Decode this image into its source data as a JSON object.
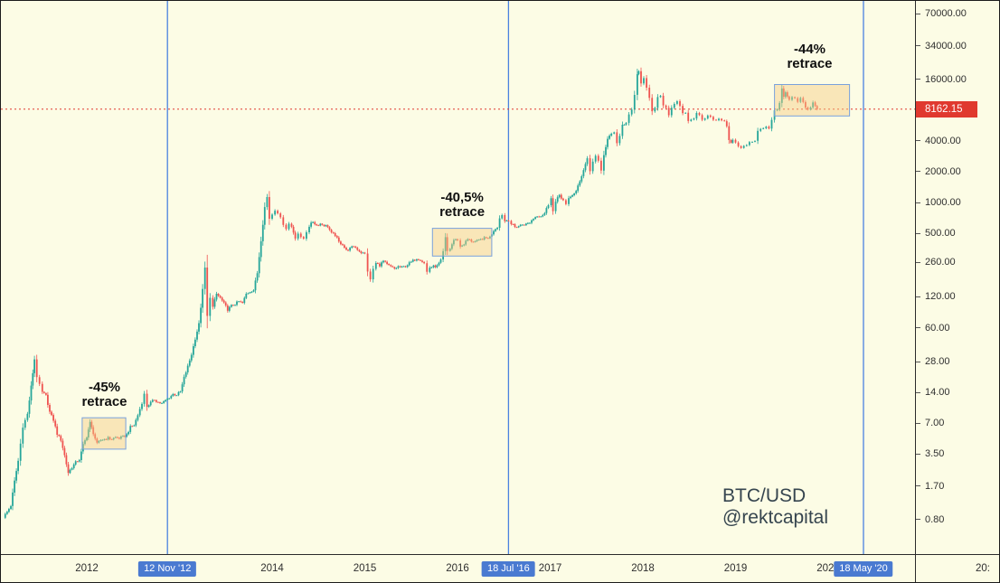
{
  "colors": {
    "background": "#FCFCE5",
    "candle_up": "#26a69a",
    "candle_down": "#ef5350",
    "halving_line": "#4b82e0",
    "tag_bg": "#4a7ad1",
    "price_line": "#e0392f",
    "price_tag_bg": "#e0392f",
    "box_fill": "rgba(246,204,128,0.45)",
    "box_border": "#79a1dc",
    "annotation_text": "#101010",
    "axis_text": "#2f2f2f",
    "watermark_text": "#36454f"
  },
  "chart_data": {
    "type": "candlestick",
    "symbol": "BTC/USD",
    "scale": "log",
    "title": "",
    "watermark": {
      "line1": "BTC/USD",
      "line2": "@rektcapital"
    },
    "last_price": {
      "value": 8162.15,
      "label": "8162.15"
    },
    "y_axis": {
      "scale": "log",
      "ticks": [
        {
          "value": 70000,
          "label": "70000.00"
        },
        {
          "value": 34000,
          "label": "34000.00"
        },
        {
          "value": 16000,
          "label": "16000.00"
        },
        {
          "value": 4000,
          "label": "4000.00"
        },
        {
          "value": 2000,
          "label": "2000.00"
        },
        {
          "value": 1000,
          "label": "1000.00"
        },
        {
          "value": 500,
          "label": "500.00"
        },
        {
          "value": 260,
          "label": "260.00"
        },
        {
          "value": 120,
          "label": "120.00"
        },
        {
          "value": 60,
          "label": "60.00"
        },
        {
          "value": 28,
          "label": "28.00"
        },
        {
          "value": 14,
          "label": "14.00"
        },
        {
          "value": 7,
          "label": "7.00"
        },
        {
          "value": 3.5,
          "label": "3.50"
        },
        {
          "value": 1.7,
          "label": "1.70"
        },
        {
          "value": 0.8,
          "label": "0.80"
        }
      ]
    },
    "time_axis": {
      "years": [
        {
          "t": 2012,
          "label": "2012"
        },
        {
          "t": 2013,
          "label": "2013"
        },
        {
          "t": 2014,
          "label": "2014"
        },
        {
          "t": 2015,
          "label": "2015"
        },
        {
          "t": 2016,
          "label": "2016"
        },
        {
          "t": 2017,
          "label": "2017"
        },
        {
          "t": 2018,
          "label": "2018"
        },
        {
          "t": 2019,
          "label": "2019"
        },
        {
          "t": 2020,
          "label": "2020"
        }
      ],
      "clock": "20:"
    },
    "halvings": [
      {
        "t": 2012.87,
        "label": "12 Nov '12"
      },
      {
        "t": 2016.55,
        "label": "18 Jul '16"
      },
      {
        "t": 2020.38,
        "label": "18 May '20"
      }
    ],
    "retrace_boxes": [
      {
        "t0": 2011.95,
        "t1": 2012.42,
        "p_low": 3.9,
        "p_high": 7.9,
        "annotation": {
          "lines": [
            "-45%",
            "retrace"
          ],
          "t": 2012.19,
          "p": 14.3
        }
      },
      {
        "t0": 2015.73,
        "t1": 2016.37,
        "p_low": 300,
        "p_high": 560,
        "annotation": {
          "lines": [
            "-40,5%",
            "retrace"
          ],
          "t": 2016.05,
          "p": 1020
        }
      },
      {
        "t0": 2019.42,
        "t1": 2020.23,
        "p_low": 7000,
        "p_high": 14200,
        "annotation": {
          "lines": [
            "-44%",
            "retrace"
          ],
          "t": 2019.8,
          "p": 28600
        }
      }
    ],
    "series": [
      [
        2011.1,
        0.85
      ],
      [
        2011.14,
        0.95
      ],
      [
        2011.18,
        1.1
      ],
      [
        2011.22,
        1.9
      ],
      [
        2011.26,
        3.0
      ],
      [
        2011.31,
        6.5
      ],
      [
        2011.36,
        8.6
      ],
      [
        2011.4,
        16.0
      ],
      [
        2011.435,
        29.5
      ],
      [
        2011.46,
        20.0
      ],
      [
        2011.49,
        16.5
      ],
      [
        2011.52,
        14.0
      ],
      [
        2011.56,
        13.0
      ],
      [
        2011.6,
        9.0
      ],
      [
        2011.64,
        7.5
      ],
      [
        2011.68,
        5.5
      ],
      [
        2011.72,
        4.8
      ],
      [
        2011.76,
        3.4
      ],
      [
        2011.8,
        2.3
      ],
      [
        2011.84,
        2.6
      ],
      [
        2011.88,
        2.9
      ],
      [
        2011.92,
        3.1
      ],
      [
        2011.96,
        4.3
      ],
      [
        2012.0,
        5.2
      ],
      [
        2012.035,
        7.1
      ],
      [
        2012.07,
        5.6
      ],
      [
        2012.11,
        4.4
      ],
      [
        2012.15,
        4.8
      ],
      [
        2012.19,
        4.9
      ],
      [
        2012.23,
        5.0
      ],
      [
        2012.27,
        4.9
      ],
      [
        2012.31,
        5.1
      ],
      [
        2012.35,
        5.0
      ],
      [
        2012.39,
        5.15
      ],
      [
        2012.43,
        5.4
      ],
      [
        2012.47,
        6.4
      ],
      [
        2012.51,
        6.7
      ],
      [
        2012.55,
        8.4
      ],
      [
        2012.595,
        11.1
      ],
      [
        2012.62,
        13.4
      ],
      [
        2012.65,
        10.2
      ],
      [
        2012.69,
        11.1
      ],
      [
        2012.73,
        11.9
      ],
      [
        2012.77,
        11.2
      ],
      [
        2012.81,
        10.9
      ],
      [
        2012.85,
        11.7
      ],
      [
        2012.89,
        12.5
      ],
      [
        2012.93,
        13.4
      ],
      [
        2012.97,
        13.3
      ],
      [
        2013.01,
        14.2
      ],
      [
        2013.05,
        19.5
      ],
      [
        2013.09,
        25.0
      ],
      [
        2013.13,
        33.0
      ],
      [
        2013.17,
        47.0
      ],
      [
        2013.21,
        65.0
      ],
      [
        2013.25,
        140.0
      ],
      [
        2013.275,
        230.0
      ],
      [
        2013.3,
        77.0
      ],
      [
        2013.33,
        120.0
      ],
      [
        2013.36,
        95.0
      ],
      [
        2013.4,
        128.0
      ],
      [
        2013.44,
        117.0
      ],
      [
        2013.48,
        103.0
      ],
      [
        2013.52,
        90.0
      ],
      [
        2013.56,
        98.0
      ],
      [
        2013.6,
        102.0
      ],
      [
        2013.64,
        108.0
      ],
      [
        2013.68,
        104.0
      ],
      [
        2013.72,
        128.0
      ],
      [
        2013.76,
        135.0
      ],
      [
        2013.8,
        140.0
      ],
      [
        2013.84,
        205.0
      ],
      [
        2013.88,
        430.0
      ],
      [
        2013.92,
        900.0
      ],
      [
        2013.945,
        1130.0
      ],
      [
        2013.97,
        700.0
      ],
      [
        2014.0,
        770.0
      ],
      [
        2014.03,
        850.0
      ],
      [
        2014.06,
        800.0
      ],
      [
        2014.09,
        700.0
      ],
      [
        2014.12,
        620.0
      ],
      [
        2014.15,
        560.0
      ],
      [
        2014.18,
        620.0
      ],
      [
        2014.21,
        580.0
      ],
      [
        2014.25,
        455.0
      ],
      [
        2014.28,
        500.0
      ],
      [
        2014.31,
        450.0
      ],
      [
        2014.34,
        445.0
      ],
      [
        2014.37,
        520.0
      ],
      [
        2014.4,
        590.0
      ],
      [
        2014.44,
        650.0
      ],
      [
        2014.48,
        600.0
      ],
      [
        2014.52,
        620.0
      ],
      [
        2014.56,
        600.0
      ],
      [
        2014.6,
        585.0
      ],
      [
        2014.64,
        500.0
      ],
      [
        2014.68,
        480.0
      ],
      [
        2014.72,
        410.0
      ],
      [
        2014.76,
        390.0
      ],
      [
        2014.8,
        340.0
      ],
      [
        2014.84,
        355.0
      ],
      [
        2014.88,
        375.0
      ],
      [
        2014.92,
        350.0
      ],
      [
        2014.96,
        325.0
      ],
      [
        2015.0,
        315.0
      ],
      [
        2015.03,
        215.0
      ],
      [
        2015.06,
        175.0
      ],
      [
        2015.09,
        225.0
      ],
      [
        2015.12,
        255.0
      ],
      [
        2015.16,
        245.0
      ],
      [
        2015.2,
        268.0
      ],
      [
        2015.24,
        247.0
      ],
      [
        2015.28,
        236.0
      ],
      [
        2015.32,
        225.0
      ],
      [
        2015.36,
        237.0
      ],
      [
        2015.4,
        232.0
      ],
      [
        2015.44,
        240.0
      ],
      [
        2015.48,
        255.0
      ],
      [
        2015.52,
        270.0
      ],
      [
        2015.56,
        285.0
      ],
      [
        2015.6,
        277.0
      ],
      [
        2015.64,
        255.0
      ],
      [
        2015.67,
        210.0
      ],
      [
        2015.7,
        232.0
      ],
      [
        2015.74,
        237.0
      ],
      [
        2015.78,
        240.0
      ],
      [
        2015.82,
        270.0
      ],
      [
        2015.845,
        330.0
      ],
      [
        2015.87,
        450.0
      ],
      [
        2015.89,
        335.0
      ],
      [
        2015.92,
        355.0
      ],
      [
        2015.96,
        430.0
      ],
      [
        2016.0,
        434.0
      ],
      [
        2016.03,
        370.0
      ],
      [
        2016.07,
        395.0
      ],
      [
        2016.11,
        438.0
      ],
      [
        2016.15,
        420.0
      ],
      [
        2016.19,
        416.0
      ],
      [
        2016.23,
        425.0
      ],
      [
        2016.27,
        445.0
      ],
      [
        2016.31,
        450.0
      ],
      [
        2016.35,
        460.0
      ],
      [
        2016.39,
        535.0
      ],
      [
        2016.43,
        580.0
      ],
      [
        2016.455,
        700.0
      ],
      [
        2016.48,
        765.0
      ],
      [
        2016.51,
        660.0
      ],
      [
        2016.55,
        680.0
      ],
      [
        2016.58,
        620.0
      ],
      [
        2016.62,
        575.0
      ],
      [
        2016.66,
        590.0
      ],
      [
        2016.7,
        610.0
      ],
      [
        2016.74,
        615.0
      ],
      [
        2016.78,
        640.0
      ],
      [
        2016.82,
        700.0
      ],
      [
        2016.86,
        745.0
      ],
      [
        2016.9,
        740.0
      ],
      [
        2016.94,
        790.0
      ],
      [
        2016.98,
        960.0
      ],
      [
        2017.01,
        1130.0
      ],
      [
        2017.03,
        820.0
      ],
      [
        2017.06,
        1010.0
      ],
      [
        2017.1,
        1190.0
      ],
      [
        2017.14,
        1050.0
      ],
      [
        2017.17,
        950.0
      ],
      [
        2017.2,
        1080.0
      ],
      [
        2017.24,
        1190.0
      ],
      [
        2017.28,
        1290.0
      ],
      [
        2017.32,
        1600.0
      ],
      [
        2017.36,
        2100.0
      ],
      [
        2017.4,
        2700.0
      ],
      [
        2017.43,
        2050.0
      ],
      [
        2017.46,
        2480.0
      ],
      [
        2017.49,
        2900.0
      ],
      [
        2017.52,
        2550.0
      ],
      [
        2017.55,
        2000.0
      ],
      [
        2017.58,
        2870.0
      ],
      [
        2017.62,
        4200.0
      ],
      [
        2017.66,
        4650.0
      ],
      [
        2017.69,
        4950.0
      ],
      [
        2017.72,
        3700.0
      ],
      [
        2017.75,
        4360.0
      ],
      [
        2017.78,
        5700.0
      ],
      [
        2017.82,
        6100.0
      ],
      [
        2017.85,
        7400.0
      ],
      [
        2017.88,
        8000.0
      ],
      [
        2017.91,
        11000.0
      ],
      [
        2017.94,
        17500.0
      ],
      [
        2017.955,
        19300.0
      ],
      [
        2017.98,
        14300.0
      ],
      [
        2018.01,
        16000.0
      ],
      [
        2018.04,
        13500.0
      ],
      [
        2018.07,
        10500.0
      ],
      [
        2018.1,
        7800.0
      ],
      [
        2018.13,
        8600.0
      ],
      [
        2018.16,
        10800.0
      ],
      [
        2018.19,
        11100.0
      ],
      [
        2018.22,
        9000.0
      ],
      [
        2018.25,
        8200.0
      ],
      [
        2018.28,
        7000.0
      ],
      [
        2018.31,
        8200.0
      ],
      [
        2018.34,
        9300.0
      ],
      [
        2018.37,
        9650.0
      ],
      [
        2018.4,
        8800.0
      ],
      [
        2018.43,
        7600.0
      ],
      [
        2018.46,
        7400.0
      ],
      [
        2018.49,
        6200.0
      ],
      [
        2018.52,
        6600.0
      ],
      [
        2018.55,
        6750.0
      ],
      [
        2018.58,
        7500.0
      ],
      [
        2018.61,
        7300.0
      ],
      [
        2018.64,
        6350.0
      ],
      [
        2018.67,
        6500.0
      ],
      [
        2018.7,
        7150.0
      ],
      [
        2018.73,
        6700.0
      ],
      [
        2018.76,
        6500.0
      ],
      [
        2018.79,
        6480.0
      ],
      [
        2018.82,
        6400.0
      ],
      [
        2018.85,
        6450.0
      ],
      [
        2018.88,
        6350.0
      ],
      [
        2018.905,
        5500.0
      ],
      [
        2018.93,
        4050.0
      ],
      [
        2018.95,
        3800.0
      ],
      [
        2018.97,
        4100.0
      ],
      [
        2019.0,
        3800.0
      ],
      [
        2019.03,
        3500.0
      ],
      [
        2019.06,
        3430.0
      ],
      [
        2019.09,
        3600.0
      ],
      [
        2019.12,
        3700.0
      ],
      [
        2019.15,
        3900.0
      ],
      [
        2019.18,
        3950.0
      ],
      [
        2019.21,
        4050.0
      ],
      [
        2019.24,
        4950.0
      ],
      [
        2019.27,
        5150.0
      ],
      [
        2019.3,
        5300.0
      ],
      [
        2019.33,
        5650.0
      ],
      [
        2019.36,
        5300.0
      ],
      [
        2019.39,
        6250.0
      ],
      [
        2019.42,
        7900.0
      ],
      [
        2019.45,
        8100.0
      ],
      [
        2019.475,
        9200.0
      ],
      [
        2019.5,
        12700.0
      ],
      [
        2019.52,
        10700.0
      ],
      [
        2019.54,
        11900.0
      ],
      [
        2019.56,
        10600.0
      ],
      [
        2019.58,
        9800.0
      ],
      [
        2019.61,
        10800.0
      ],
      [
        2019.64,
        10300.0
      ],
      [
        2019.67,
        9500.0
      ],
      [
        2019.7,
        10350.0
      ],
      [
        2019.73,
        9800.0
      ],
      [
        2019.755,
        8400.0
      ],
      [
        2019.78,
        8150.0
      ],
      [
        2019.81,
        8550.0
      ],
      [
        2019.835,
        9350.0
      ],
      [
        2019.86,
        8700.0
      ],
      [
        2019.88,
        8162.15
      ]
    ]
  }
}
